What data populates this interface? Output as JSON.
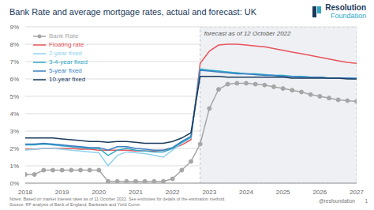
{
  "chart_data": {
    "type": "line",
    "title": "Bank Rate and average mortgage rates, actual and forecast: UK",
    "logo": [
      "Resolution",
      "Foundation"
    ],
    "notes": "Notes: Based on market interest rates as of 11 October 2022. See endnotes for details of the estimation method.",
    "source": "Source: RF analysis of Bank of England, Bankstats and Yield Curve.",
    "handle": "@resfoundation",
    "page": "1",
    "annotations": [
      {
        "text": "forecast as of 12 October 2022",
        "x_start": 2022.75,
        "x_end": 2027
      }
    ],
    "x": [
      2018,
      2018.25,
      2018.5,
      2018.75,
      2019,
      2019.25,
      2019.5,
      2019.75,
      2020,
      2020.25,
      2020.5,
      2020.75,
      2021,
      2021.25,
      2021.5,
      2021.75,
      2022,
      2022.25,
      2022.5,
      2022.75,
      2023,
      2023.25,
      2023.5,
      2023.75,
      2024,
      2024.25,
      2024.5,
      2024.75,
      2025,
      2025.25,
      2025.5,
      2025.75,
      2026,
      2026.25,
      2026.5,
      2026.75,
      2027
    ],
    "xlim": [
      2018,
      2027
    ],
    "xticks": [
      2018,
      2019,
      2020,
      2021,
      2022,
      2023,
      2024,
      2025,
      2026,
      2027
    ],
    "ylim": [
      0,
      9
    ],
    "yticks": [
      {
        "value": 0,
        "label": "0%"
      },
      {
        "value": 1,
        "label": "1%"
      },
      {
        "value": 2,
        "label": "2%"
      },
      {
        "value": 3,
        "label": "3%"
      },
      {
        "value": 4,
        "label": "4%"
      },
      {
        "value": 5,
        "label": "5%"
      },
      {
        "value": 6,
        "label": "6%"
      },
      {
        "value": 7,
        "label": "7%"
      },
      {
        "value": 8,
        "label": "8%"
      },
      {
        "value": 9,
        "label": "9%"
      }
    ],
    "grid": true,
    "legend": "upper left",
    "series": [
      {
        "name": "Bank Rate",
        "color": "#a6a6a6",
        "marker": "circle",
        "line_style": "solid",
        "values": [
          0.5,
          0.5,
          0.75,
          0.75,
          0.75,
          0.75,
          0.75,
          0.75,
          0.75,
          0.1,
          0.1,
          0.1,
          0.1,
          0.1,
          0.1,
          0.1,
          0.25,
          0.75,
          1.25,
          2.25,
          4.3,
          5.4,
          5.7,
          5.75,
          5.75,
          5.7,
          5.65,
          5.55,
          5.45,
          5.35,
          5.25,
          5.1,
          5.0,
          4.9,
          4.8,
          4.75,
          4.7
        ]
      },
      {
        "name": "Floating rate",
        "color": "#e8545a",
        "line_style": "solid",
        "values": [
          1.95,
          1.95,
          2.0,
          2.0,
          2.0,
          2.0,
          1.95,
          1.95,
          1.9,
          1.9,
          1.9,
          1.9,
          1.85,
          1.85,
          1.85,
          1.9,
          2.0,
          2.2,
          2.5,
          6.9,
          7.6,
          7.95,
          8.0,
          8.0,
          7.95,
          7.9,
          7.85,
          7.75,
          7.65,
          7.55,
          7.45,
          7.35,
          7.25,
          7.15,
          7.05,
          6.95,
          6.9
        ]
      },
      {
        "name": "2-year fixed",
        "color": "#8ed3ef",
        "line_style": "solid",
        "values": [
          1.9,
          1.95,
          2.0,
          2.0,
          1.95,
          1.9,
          1.85,
          1.8,
          1.75,
          1.0,
          1.6,
          1.8,
          1.75,
          1.7,
          1.6,
          1.5,
          1.9,
          2.3,
          2.6,
          6.6,
          6.5,
          6.45,
          6.4,
          6.35,
          6.3,
          6.25,
          6.25,
          6.2,
          6.2,
          6.15,
          6.15,
          6.1,
          6.1,
          6.05,
          6.05,
          6.05,
          6.0
        ]
      },
      {
        "name": "3-4-year fixed",
        "color": "#2fa8c6",
        "line_style": "solid",
        "values": [
          2.2,
          2.2,
          2.25,
          2.2,
          2.15,
          2.1,
          2.05,
          2.0,
          2.0,
          1.6,
          1.9,
          2.0,
          1.9,
          1.85,
          1.8,
          1.8,
          2.0,
          2.35,
          2.65,
          6.55,
          6.5,
          6.45,
          6.4,
          6.35,
          6.3,
          6.3,
          6.25,
          6.2,
          6.2,
          6.15,
          6.15,
          6.1,
          6.1,
          6.05,
          6.05,
          6.05,
          6.0
        ]
      },
      {
        "name": "5-year fixed",
        "color": "#3a7fc1",
        "line_style": "solid",
        "values": [
          2.25,
          2.25,
          2.3,
          2.25,
          2.2,
          2.15,
          2.1,
          2.05,
          2.05,
          1.9,
          2.1,
          2.1,
          2.0,
          1.95,
          1.9,
          1.9,
          2.05,
          2.4,
          2.7,
          6.5,
          6.45,
          6.4,
          6.35,
          6.3,
          6.3,
          6.25,
          6.2,
          6.2,
          6.15,
          6.15,
          6.1,
          6.1,
          6.1,
          6.05,
          6.05,
          6.05,
          6.05
        ]
      },
      {
        "name": "10-year fixed",
        "color": "#1b3a5c",
        "line_style": "solid",
        "values": [
          2.6,
          2.6,
          2.6,
          2.6,
          2.55,
          2.5,
          2.45,
          2.4,
          2.4,
          2.35,
          2.4,
          2.4,
          2.35,
          2.3,
          2.3,
          2.3,
          2.4,
          2.6,
          2.9,
          6.15,
          6.15,
          6.15,
          6.1,
          6.1,
          6.1,
          6.1,
          6.1,
          6.1,
          6.1,
          6.05,
          6.05,
          6.05,
          6.05,
          6.05,
          6.05,
          6.0,
          6.0
        ]
      }
    ]
  }
}
